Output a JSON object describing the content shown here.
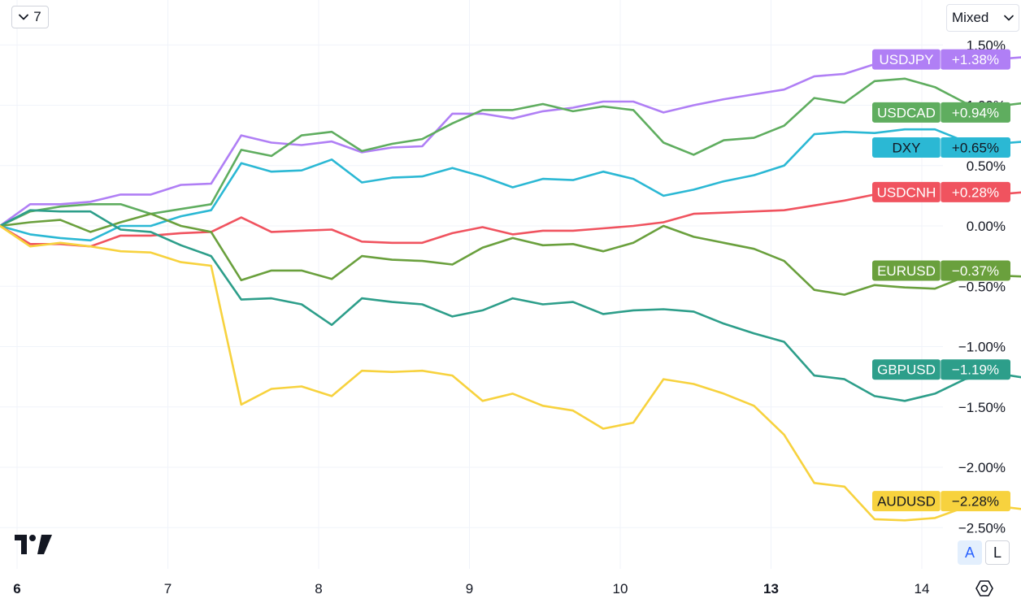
{
  "toolbar": {
    "interval_label": "7",
    "interval_icon": "chevron-down-icon",
    "scale_mode_label": "Mixed",
    "scale_mode_icon": "chevron-down-icon",
    "auto_scale_label": "A",
    "log_scale_label": "L",
    "settings_icon": "gear-icon",
    "logo_icon": "tradingview-logo"
  },
  "chart_data": {
    "type": "line",
    "y_unit": "%",
    "ylim": [
      -2.75,
      1.75
    ],
    "y_ticks": [
      "1.50%",
      "1.00%",
      "0.50%",
      "0.00%",
      "−0.50%",
      "−1.00%",
      "−1.50%",
      "−2.00%",
      "−2.50%"
    ],
    "y_tick_values": [
      1.5,
      1.0,
      0.5,
      0.0,
      -0.5,
      -1.0,
      -1.5,
      -2.0,
      -2.5
    ],
    "x_ticks": [
      "6",
      "7",
      "8",
      "9",
      "10",
      "13",
      "14"
    ],
    "x_tick_values": [
      0,
      5,
      10,
      15,
      20,
      25,
      30
    ],
    "x_tick_bold": [
      "6",
      "13"
    ],
    "grid": true,
    "series": [
      {
        "name": "USDJPY",
        "label": "USDJPY",
        "value_label": "+1.38%",
        "color": "#b07ff5",
        "values": [
          0.0,
          0.18,
          0.18,
          0.2,
          0.26,
          0.26,
          0.34,
          0.35,
          0.75,
          0.69,
          0.67,
          0.7,
          0.61,
          0.65,
          0.66,
          0.93,
          0.93,
          0.89,
          0.95,
          0.98,
          1.03,
          1.03,
          0.94,
          1.0,
          1.05,
          1.09,
          1.13,
          1.24,
          1.26,
          1.34,
          1.33,
          1.38,
          1.38,
          1.38,
          1.4,
          1.38
        ]
      },
      {
        "name": "USDCAD",
        "label": "USDCAD",
        "value_label": "+0.94%",
        "color": "#5fad5f",
        "values": [
          0.0,
          0.12,
          0.16,
          0.18,
          0.18,
          0.1,
          0.14,
          0.18,
          0.63,
          0.58,
          0.75,
          0.78,
          0.62,
          0.68,
          0.72,
          0.85,
          0.96,
          0.96,
          1.01,
          0.95,
          0.99,
          0.96,
          0.69,
          0.59,
          0.71,
          0.73,
          0.83,
          1.06,
          1.02,
          1.2,
          1.22,
          1.15,
          1.02,
          0.99,
          1.02,
          0.94
        ]
      },
      {
        "name": "DXY",
        "label": "DXY",
        "value_label": "+0.65%",
        "color": "#2bb8d4",
        "values": [
          0.0,
          -0.07,
          -0.1,
          -0.12,
          0.0,
          0.0,
          0.08,
          0.13,
          0.52,
          0.45,
          0.46,
          0.55,
          0.36,
          0.4,
          0.41,
          0.48,
          0.41,
          0.32,
          0.39,
          0.38,
          0.45,
          0.39,
          0.25,
          0.3,
          0.37,
          0.42,
          0.5,
          0.76,
          0.78,
          0.77,
          0.8,
          0.8,
          0.7,
          0.68,
          0.7,
          0.65
        ]
      },
      {
        "name": "USDCNH",
        "label": "USDCNH",
        "value_label": "+0.28%",
        "color": "#f0535f",
        "values": [
          0.0,
          -0.15,
          -0.15,
          -0.17,
          -0.08,
          -0.08,
          -0.06,
          -0.05,
          0.07,
          -0.05,
          -0.04,
          -0.03,
          -0.13,
          -0.14,
          -0.14,
          -0.06,
          -0.01,
          -0.07,
          -0.04,
          -0.04,
          -0.02,
          0.0,
          0.03,
          0.1,
          0.11,
          0.12,
          0.13,
          0.17,
          0.21,
          0.26,
          0.26,
          0.27,
          0.26,
          0.26,
          0.28,
          0.28
        ]
      },
      {
        "name": "EURUSD",
        "label": "EURUSD",
        "value_label": "−0.37%",
        "color": "#6aa03d",
        "values": [
          0.0,
          0.03,
          0.05,
          -0.05,
          0.03,
          0.1,
          0.0,
          -0.05,
          -0.45,
          -0.37,
          -0.37,
          -0.44,
          -0.25,
          -0.28,
          -0.29,
          -0.32,
          -0.18,
          -0.1,
          -0.16,
          -0.15,
          -0.21,
          -0.14,
          0.0,
          -0.09,
          -0.14,
          -0.19,
          -0.29,
          -0.53,
          -0.57,
          -0.49,
          -0.51,
          -0.52,
          -0.42,
          -0.41,
          -0.42,
          -0.37
        ]
      },
      {
        "name": "GBPUSD",
        "label": "GBPUSD",
        "value_label": "−1.19%",
        "color": "#2d9e8a",
        "values": [
          0.0,
          0.13,
          0.12,
          0.12,
          -0.03,
          -0.05,
          -0.16,
          -0.25,
          -0.61,
          -0.6,
          -0.65,
          -0.82,
          -0.6,
          -0.63,
          -0.65,
          -0.75,
          -0.7,
          -0.6,
          -0.65,
          -0.63,
          -0.73,
          -0.7,
          -0.69,
          -0.71,
          -0.81,
          -0.89,
          -0.96,
          -1.24,
          -1.27,
          -1.41,
          -1.45,
          -1.39,
          -1.27,
          -1.22,
          -1.26,
          -1.19
        ]
      },
      {
        "name": "AUDUSD",
        "label": "AUDUSD",
        "value_label": "−2.28%",
        "color": "#f7d23e",
        "values": [
          0.0,
          -0.17,
          -0.14,
          -0.17,
          -0.21,
          -0.22,
          -0.3,
          -0.33,
          -1.48,
          -1.35,
          -1.33,
          -1.41,
          -1.2,
          -1.21,
          -1.2,
          -1.24,
          -1.45,
          -1.39,
          -1.49,
          -1.53,
          -1.68,
          -1.63,
          -1.27,
          -1.31,
          -1.39,
          -1.49,
          -1.73,
          -2.13,
          -2.16,
          -2.43,
          -2.44,
          -2.42,
          -2.33,
          -2.32,
          -2.35,
          -2.28
        ]
      }
    ]
  }
}
